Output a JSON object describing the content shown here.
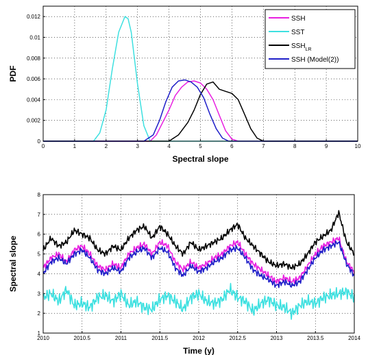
{
  "chart_data": [
    {
      "type": "line",
      "xlabel": "Spectral slope",
      "ylabel": "PDF",
      "xlim": [
        0,
        10
      ],
      "ylim": [
        0,
        0.013
      ],
      "xticks": [
        "0",
        "1",
        "2",
        "3",
        "4",
        "5",
        "6",
        "7",
        "8",
        "9",
        "10"
      ],
      "yticks": [
        "0",
        "0.002",
        "0.004",
        "0.006",
        "0.008",
        "0.01",
        "0.012"
      ],
      "grid": true,
      "legend": "top-right",
      "series": [
        {
          "name": "SSH",
          "color": "#e81ee0",
          "x": [
            3.4,
            3.6,
            3.8,
            4.0,
            4.2,
            4.4,
            4.6,
            4.8,
            5.0,
            5.2,
            5.4,
            5.6,
            5.8,
            6.0,
            6.2
          ],
          "y": [
            0,
            0.0006,
            0.0018,
            0.003,
            0.0044,
            0.0052,
            0.0057,
            0.0058,
            0.0056,
            0.005,
            0.004,
            0.0025,
            0.001,
            0.0002,
            0
          ]
        },
        {
          "name": "SST",
          "color": "#3de0e0",
          "x": [
            1.6,
            1.8,
            2.0,
            2.2,
            2.4,
            2.6,
            2.7,
            2.8,
            3.0,
            3.2,
            3.4
          ],
          "y": [
            0,
            0.0008,
            0.003,
            0.007,
            0.0105,
            0.012,
            0.0118,
            0.0105,
            0.0055,
            0.0015,
            0
          ]
        },
        {
          "name": "SSH",
          "sub": "LR",
          "color": "#000000",
          "x": [
            4.0,
            4.3,
            4.6,
            4.8,
            5.0,
            5.2,
            5.4,
            5.6,
            5.8,
            6.0,
            6.2,
            6.4,
            6.6,
            6.8,
            7.0
          ],
          "y": [
            0,
            0.0006,
            0.0018,
            0.003,
            0.0045,
            0.0055,
            0.0057,
            0.005,
            0.0048,
            0.0046,
            0.004,
            0.0026,
            0.0012,
            0.0003,
            0
          ]
        },
        {
          "name": "SSH (Model(2))",
          "color": "#1e1ec8",
          "x": [
            3.2,
            3.5,
            3.7,
            3.9,
            4.1,
            4.3,
            4.5,
            4.7,
            4.9,
            5.1,
            5.3,
            5.5,
            5.7,
            5.9
          ],
          "y": [
            0,
            0.0006,
            0.002,
            0.0038,
            0.0052,
            0.0058,
            0.0059,
            0.0057,
            0.0052,
            0.0042,
            0.0026,
            0.0012,
            0.0003,
            0
          ]
        }
      ]
    },
    {
      "type": "line",
      "xlabel": "Time (y)",
      "ylabel": "Spectral slope",
      "xlim": [
        2010,
        2014
      ],
      "ylim": [
        1,
        8
      ],
      "xticks": [
        "2010",
        "2010.5",
        "2011",
        "2011.5",
        "2012",
        "2012.5",
        "2013",
        "2013.5",
        "2014"
      ],
      "yticks": [
        "1",
        "2",
        "3",
        "4",
        "5",
        "6",
        "7",
        "8"
      ],
      "grid": true,
      "series": [
        {
          "name": "SSH",
          "color": "#e81ee0",
          "x": [
            2010,
            2010.1,
            2010.2,
            2010.3,
            2010.4,
            2010.5,
            2010.6,
            2010.7,
            2010.8,
            2010.9,
            2011,
            2011.1,
            2011.2,
            2011.3,
            2011.4,
            2011.5,
            2011.6,
            2011.7,
            2011.8,
            2011.9,
            2012,
            2012.1,
            2012.2,
            2012.3,
            2012.4,
            2012.5,
            2012.6,
            2012.7,
            2012.8,
            2012.9,
            2013,
            2013.1,
            2013.2,
            2013.3,
            2013.4,
            2013.5,
            2013.6,
            2013.7,
            2013.8,
            2013.9,
            2014
          ],
          "y": [
            4.3,
            4.8,
            5.0,
            4.6,
            5.2,
            5.4,
            5.0,
            4.4,
            4.2,
            4.5,
            4.3,
            5.0,
            5.3,
            5.5,
            5.0,
            5.6,
            5.4,
            4.6,
            4.2,
            4.6,
            4.3,
            4.5,
            4.8,
            5.0,
            5.4,
            5.6,
            5.0,
            4.5,
            4.2,
            3.9,
            3.6,
            3.8,
            3.6,
            3.8,
            4.4,
            5.0,
            5.4,
            5.6,
            5.8,
            4.6,
            4.1
          ]
        },
        {
          "name": "SST",
          "color": "#3de0e0",
          "x": [
            2010,
            2010.1,
            2010.2,
            2010.3,
            2010.4,
            2010.5,
            2010.6,
            2010.7,
            2010.8,
            2010.9,
            2011,
            2011.1,
            2011.2,
            2011.3,
            2011.4,
            2011.5,
            2011.6,
            2011.7,
            2011.8,
            2011.9,
            2012,
            2012.1,
            2012.2,
            2012.3,
            2012.4,
            2012.5,
            2012.6,
            2012.7,
            2012.8,
            2012.9,
            2013,
            2013.1,
            2013.2,
            2013.3,
            2013.4,
            2013.5,
            2013.6,
            2013.7,
            2013.8,
            2013.9,
            2014
          ],
          "y": [
            2.8,
            3.0,
            2.6,
            3.2,
            2.4,
            2.5,
            2.3,
            2.8,
            2.9,
            2.6,
            3.0,
            2.4,
            2.6,
            2.3,
            2.2,
            2.7,
            2.9,
            2.6,
            2.2,
            2.8,
            3.0,
            2.6,
            2.5,
            2.7,
            3.2,
            2.8,
            2.6,
            2.1,
            2.5,
            2.7,
            2.4,
            2.3,
            2.0,
            2.4,
            2.6,
            2.5,
            2.8,
            2.9,
            3.0,
            3.1,
            2.8
          ]
        },
        {
          "name": "SSH",
          "sub": "LR",
          "color": "#000000",
          "x": [
            2010,
            2010.1,
            2010.2,
            2010.3,
            2010.4,
            2010.5,
            2010.6,
            2010.7,
            2010.8,
            2010.9,
            2011,
            2011.1,
            2011.2,
            2011.3,
            2011.4,
            2011.5,
            2011.6,
            2011.7,
            2011.8,
            2011.9,
            2012,
            2012.1,
            2012.2,
            2012.3,
            2012.4,
            2012.5,
            2012.6,
            2012.7,
            2012.8,
            2012.9,
            2013,
            2013.1,
            2013.2,
            2013.3,
            2013.4,
            2013.5,
            2013.6,
            2013.7,
            2013.8,
            2013.9,
            2014
          ],
          "y": [
            5.2,
            5.8,
            5.4,
            5.6,
            6.2,
            6.0,
            5.8,
            5.2,
            5.0,
            5.4,
            5.2,
            5.8,
            6.2,
            6.4,
            5.8,
            6.4,
            6.0,
            5.4,
            5.0,
            5.6,
            5.2,
            5.4,
            5.6,
            5.8,
            6.2,
            6.5,
            5.8,
            5.4,
            5.0,
            4.6,
            4.4,
            4.5,
            4.3,
            4.5,
            5.0,
            5.6,
            5.9,
            6.2,
            7.1,
            5.6,
            5.0
          ]
        },
        {
          "name": "SSH (Model(2))",
          "color": "#1e1ec8",
          "x": [
            2010,
            2010.1,
            2010.2,
            2010.3,
            2010.4,
            2010.5,
            2010.6,
            2010.7,
            2010.8,
            2010.9,
            2011,
            2011.1,
            2011.2,
            2011.3,
            2011.4,
            2011.5,
            2011.6,
            2011.7,
            2011.8,
            2011.9,
            2012,
            2012.1,
            2012.2,
            2012.3,
            2012.4,
            2012.5,
            2012.6,
            2012.7,
            2012.8,
            2012.9,
            2013,
            2013.1,
            2013.2,
            2013.3,
            2013.4,
            2013.5,
            2013.6,
            2013.7,
            2013.8,
            2013.9,
            2014
          ],
          "y": [
            4.0,
            4.6,
            4.8,
            4.5,
            5.0,
            5.2,
            4.8,
            4.2,
            4.0,
            4.3,
            4.1,
            4.8,
            5.1,
            5.3,
            4.8,
            5.3,
            5.1,
            4.3,
            3.9,
            4.4,
            4.1,
            4.3,
            4.6,
            4.8,
            5.2,
            5.3,
            4.8,
            4.2,
            3.9,
            3.7,
            3.4,
            3.6,
            3.4,
            3.6,
            4.2,
            4.8,
            5.2,
            5.4,
            5.6,
            4.5,
            3.9
          ]
        }
      ]
    }
  ],
  "legend_sub": "LR"
}
